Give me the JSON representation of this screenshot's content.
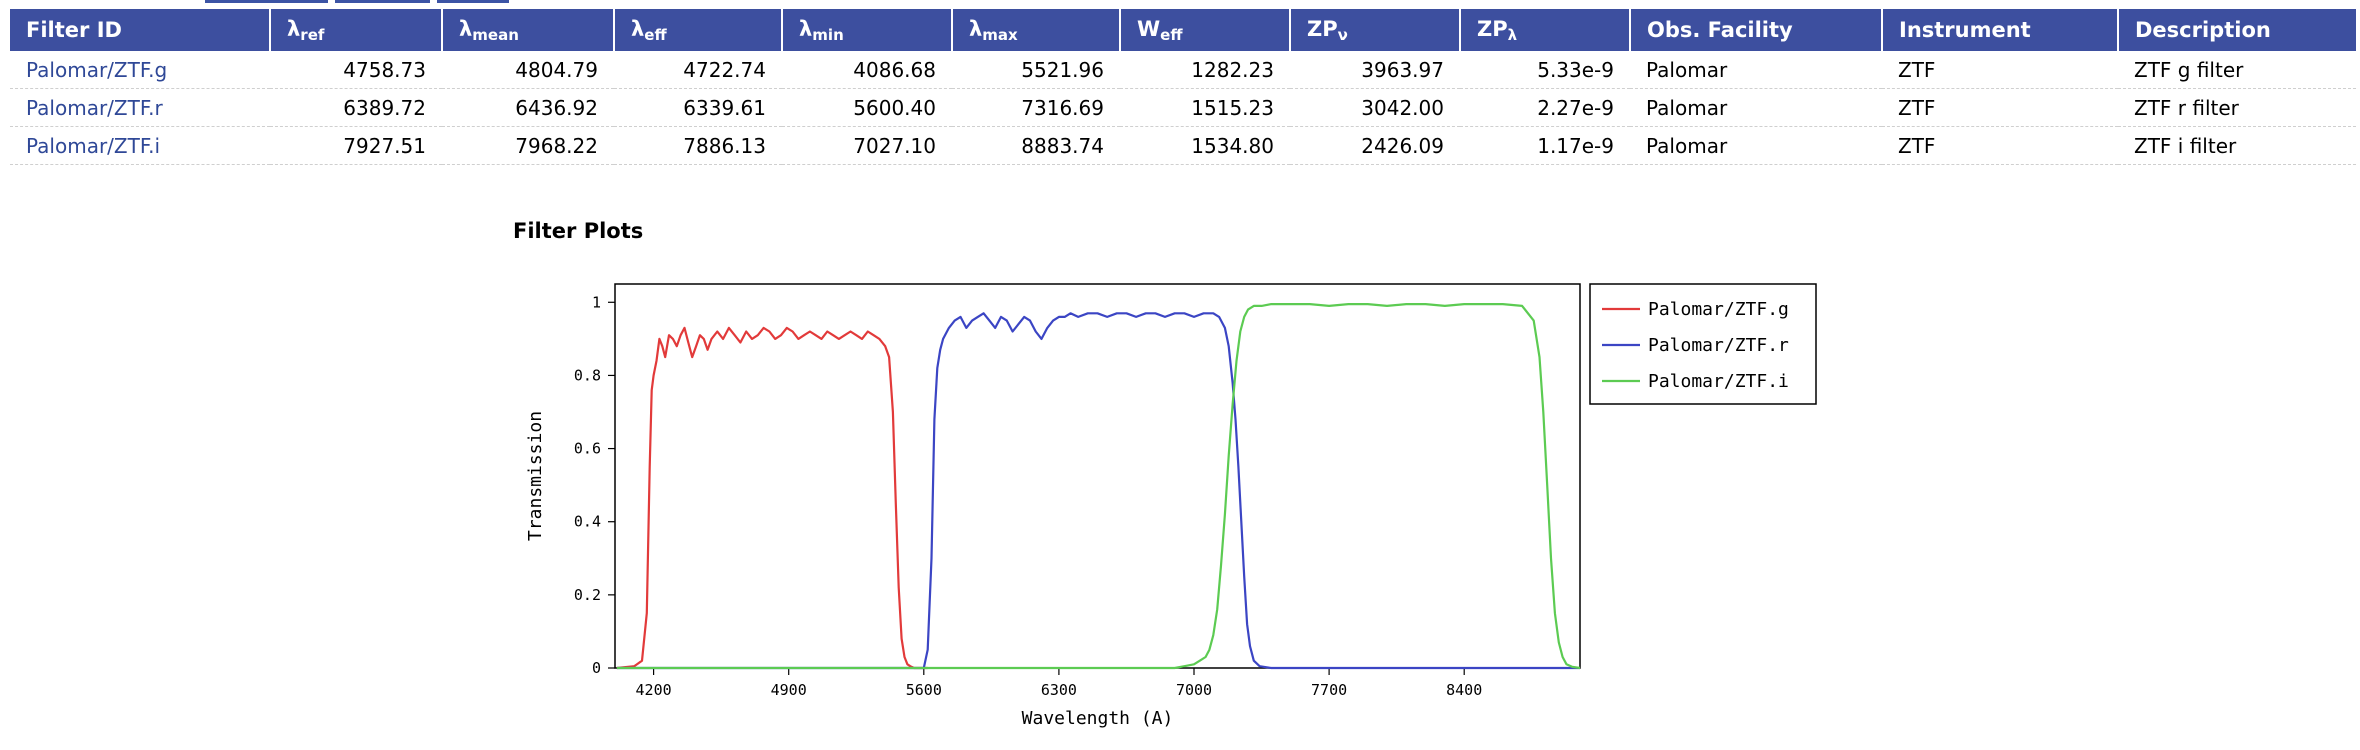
{
  "table": {
    "headers": [
      {
        "main": "Filter ID",
        "sub": ""
      },
      {
        "main": "λ",
        "sub": "ref"
      },
      {
        "main": "λ",
        "sub": "mean"
      },
      {
        "main": "λ",
        "sub": "eff"
      },
      {
        "main": "λ",
        "sub": "min"
      },
      {
        "main": "λ",
        "sub": "max"
      },
      {
        "main": "W",
        "sub": "eff"
      },
      {
        "main": "ZP",
        "sub": "ν"
      },
      {
        "main": "ZP",
        "sub": "λ"
      },
      {
        "main": "Obs. Facility",
        "sub": ""
      },
      {
        "main": "Instrument",
        "sub": ""
      },
      {
        "main": "Description",
        "sub": ""
      }
    ],
    "rows": [
      {
        "id": "Palomar/ZTF.g",
        "ref": "4758.73",
        "mean": "4804.79",
        "eff": "4722.74",
        "min": "4086.68",
        "max": "5521.96",
        "weff": "1282.23",
        "zpv": "3963.97",
        "zpl": "5.33e-9",
        "facility": "Palomar",
        "instrument": "ZTF",
        "description": "ZTF g filter"
      },
      {
        "id": "Palomar/ZTF.r",
        "ref": "6389.72",
        "mean": "6436.92",
        "eff": "6339.61",
        "min": "5600.40",
        "max": "7316.69",
        "weff": "1515.23",
        "zpv": "3042.00",
        "zpl": "2.27e-9",
        "facility": "Palomar",
        "instrument": "ZTF",
        "description": "ZTF r filter"
      },
      {
        "id": "Palomar/ZTF.i",
        "ref": "7927.51",
        "mean": "7968.22",
        "eff": "7886.13",
        "min": "7027.10",
        "max": "8883.74",
        "weff": "1534.80",
        "zpv": "2426.09",
        "zpl": "1.17e-9",
        "facility": "Palomar",
        "instrument": "ZTF",
        "description": "ZTF i filter"
      }
    ]
  },
  "plots_title": "Filter Plots",
  "colors": {
    "header_bg": "#3d4f9f",
    "link": "#2f4897",
    "series_g": "#e23a3a",
    "series_r": "#3b45c4",
    "series_i": "#5ccb52"
  },
  "chart_data": {
    "type": "line",
    "xlabel": "Wavelength (A)",
    "ylabel": "Transmission",
    "xlim": [
      4000,
      9000
    ],
    "ylim": [
      0,
      1.05
    ],
    "xticks": [
      4200,
      4900,
      5600,
      6300,
      7000,
      7700,
      8400
    ],
    "yticks": [
      0,
      0.2,
      0.4,
      0.6,
      0.8,
      1
    ],
    "ytick_labels": [
      "0",
      "0.2",
      "0.4",
      "0.6",
      "0.8",
      "1"
    ],
    "grid": false,
    "legend_position": "right",
    "series": [
      {
        "name": "Palomar/ZTF.g",
        "x": [
          4010,
          4100,
          4140,
          4165,
          4180,
          4190,
          4200,
          4215,
          4230,
          4245,
          4260,
          4280,
          4300,
          4320,
          4340,
          4360,
          4380,
          4400,
          4420,
          4440,
          4460,
          4480,
          4500,
          4530,
          4560,
          4590,
          4620,
          4650,
          4680,
          4710,
          4740,
          4770,
          4800,
          4830,
          4860,
          4890,
          4920,
          4950,
          4980,
          5010,
          5040,
          5070,
          5100,
          5130,
          5160,
          5190,
          5220,
          5250,
          5280,
          5310,
          5340,
          5370,
          5400,
          5420,
          5440,
          5455,
          5470,
          5485,
          5500,
          5515,
          5530,
          5550,
          5580,
          5620
        ],
        "y": [
          0.0,
          0.005,
          0.02,
          0.15,
          0.55,
          0.76,
          0.8,
          0.84,
          0.9,
          0.88,
          0.85,
          0.91,
          0.9,
          0.88,
          0.91,
          0.93,
          0.89,
          0.85,
          0.88,
          0.91,
          0.9,
          0.87,
          0.9,
          0.92,
          0.9,
          0.93,
          0.91,
          0.89,
          0.92,
          0.9,
          0.91,
          0.93,
          0.92,
          0.9,
          0.91,
          0.93,
          0.92,
          0.9,
          0.91,
          0.92,
          0.91,
          0.9,
          0.92,
          0.91,
          0.9,
          0.91,
          0.92,
          0.91,
          0.9,
          0.92,
          0.91,
          0.9,
          0.88,
          0.85,
          0.7,
          0.45,
          0.22,
          0.08,
          0.03,
          0.01,
          0.005,
          0.0,
          0.0,
          0.0
        ]
      },
      {
        "name": "Palomar/ZTF.r",
        "x": [
          4010,
          5550,
          5600,
          5620,
          5640,
          5655,
          5670,
          5685,
          5700,
          5730,
          5760,
          5790,
          5820,
          5850,
          5880,
          5910,
          5940,
          5970,
          6000,
          6030,
          6060,
          6090,
          6120,
          6150,
          6180,
          6210,
          6240,
          6270,
          6300,
          6330,
          6360,
          6400,
          6450,
          6500,
          6550,
          6600,
          6650,
          6700,
          6750,
          6800,
          6850,
          6900,
          6950,
          7000,
          7050,
          7100,
          7130,
          7160,
          7180,
          7200,
          7215,
          7230,
          7245,
          7260,
          7275,
          7290,
          7310,
          7340,
          7400,
          9000
        ],
        "y": [
          0.0,
          0.0,
          0.0,
          0.05,
          0.3,
          0.68,
          0.82,
          0.87,
          0.9,
          0.93,
          0.95,
          0.96,
          0.93,
          0.95,
          0.96,
          0.97,
          0.95,
          0.93,
          0.96,
          0.95,
          0.92,
          0.94,
          0.96,
          0.95,
          0.92,
          0.9,
          0.93,
          0.95,
          0.96,
          0.96,
          0.97,
          0.96,
          0.97,
          0.97,
          0.96,
          0.97,
          0.97,
          0.96,
          0.97,
          0.97,
          0.96,
          0.97,
          0.97,
          0.96,
          0.97,
          0.97,
          0.96,
          0.93,
          0.88,
          0.78,
          0.68,
          0.55,
          0.4,
          0.25,
          0.12,
          0.06,
          0.02,
          0.005,
          0.0,
          0.0
        ]
      },
      {
        "name": "Palomar/ZTF.i",
        "x": [
          4010,
          6900,
          6950,
          7000,
          7030,
          7060,
          7080,
          7100,
          7120,
          7140,
          7160,
          7180,
          7200,
          7220,
          7240,
          7260,
          7280,
          7310,
          7350,
          7400,
          7500,
          7600,
          7700,
          7800,
          7900,
          8000,
          8100,
          8200,
          8300,
          8400,
          8500,
          8600,
          8700,
          8760,
          8790,
          8810,
          8830,
          8850,
          8870,
          8890,
          8910,
          8930,
          8960,
          9000
        ],
        "y": [
          0.0,
          0.0,
          0.005,
          0.01,
          0.02,
          0.03,
          0.05,
          0.09,
          0.16,
          0.28,
          0.42,
          0.58,
          0.72,
          0.84,
          0.92,
          0.96,
          0.98,
          0.99,
          0.99,
          0.995,
          0.995,
          0.995,
          0.99,
          0.995,
          0.995,
          0.99,
          0.995,
          0.995,
          0.99,
          0.995,
          0.995,
          0.995,
          0.99,
          0.95,
          0.85,
          0.7,
          0.5,
          0.3,
          0.15,
          0.07,
          0.03,
          0.01,
          0.003,
          0.0
        ]
      }
    ]
  }
}
